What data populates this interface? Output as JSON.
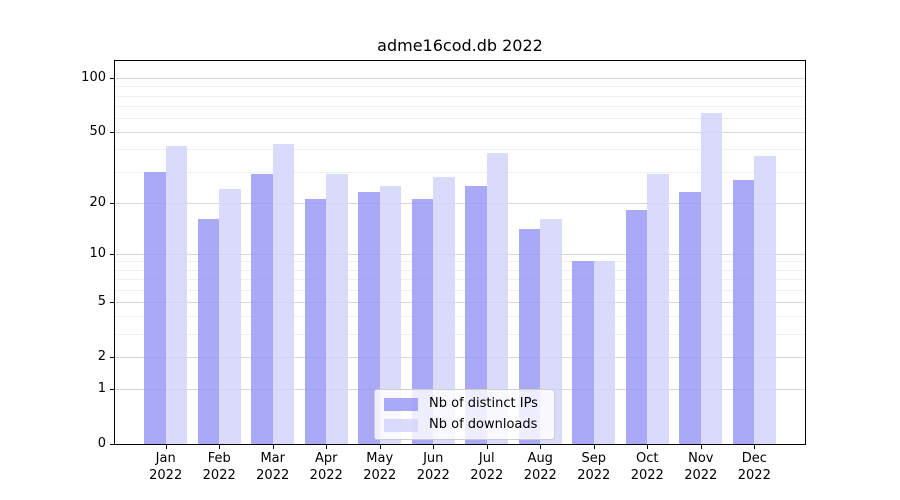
{
  "title": "adme16cod.db 2022",
  "y_axis": {
    "tick_labels": [
      "100",
      "50",
      "20",
      "10",
      "5",
      "2",
      "1",
      "0"
    ],
    "tick_values": [
      100,
      50,
      20,
      10,
      5,
      2,
      1,
      0
    ],
    "minor_values": [
      3,
      4,
      6,
      7,
      8,
      9,
      30,
      40,
      60,
      70,
      80,
      90
    ]
  },
  "legend": {
    "items": [
      {
        "label": "Nb of distinct IPs",
        "key": "distinct-ips",
        "color": "rgba(150,150,246,0.82)"
      },
      {
        "label": "Nb of downloads",
        "key": "downloads",
        "color": "rgba(211,211,250,0.85)"
      }
    ]
  },
  "chart_data": {
    "type": "bar",
    "title": "adme16cod.db 2022",
    "categories": [
      "Jan 2022",
      "Feb 2022",
      "Mar 2022",
      "Apr 2022",
      "May 2022",
      "Jun 2022",
      "Jul 2022",
      "Aug 2022",
      "Sep 2022",
      "Oct 2022",
      "Nov 2022",
      "Dec 2022"
    ],
    "series": [
      {
        "name": "Nb of distinct IPs",
        "key": "distinct-ips",
        "color": "rgba(150,150,246,0.82)",
        "values": [
          30,
          16,
          29,
          21,
          23,
          21,
          25,
          14,
          9,
          18,
          23,
          27
        ]
      },
      {
        "name": "Nb of downloads",
        "key": "downloads",
        "color": "rgba(211,211,250,0.85)",
        "values": [
          42,
          24,
          43,
          29,
          25,
          28,
          38,
          16,
          9,
          29,
          64,
          37
        ]
      }
    ],
    "xlabel": "",
    "ylabel": "",
    "yscale": "log10(1+x)",
    "ylim": [
      0,
      125
    ],
    "y_ticks": [
      0,
      1,
      2,
      5,
      10,
      20,
      50,
      100
    ],
    "grid": true,
    "legend_position": "lower center"
  }
}
